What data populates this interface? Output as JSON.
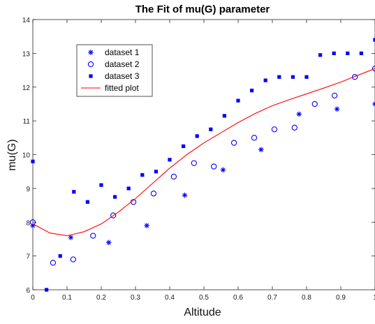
{
  "chart_data": {
    "type": "scatter",
    "title": "The Fit of mu(G) parameter",
    "xlabel": "Altitude",
    "ylabel": "mu(G)",
    "xlim": [
      0,
      1
    ],
    "ylim": [
      6,
      14
    ],
    "xticks": [
      0,
      0.1,
      0.2,
      0.3,
      0.4,
      0.5,
      0.6,
      0.7,
      0.8,
      0.9,
      1
    ],
    "xtick_labels": [
      "0",
      "0.1",
      "0.2",
      "0.3",
      "0.4",
      "0.5",
      "0.6",
      "0.7",
      "0.8",
      "0.9",
      "1"
    ],
    "yticks": [
      6,
      7,
      8,
      9,
      10,
      11,
      12,
      13,
      14
    ],
    "ytick_labels": [
      "6",
      "7",
      "8",
      "9",
      "10",
      "11",
      "12",
      "13",
      "14"
    ],
    "grid": false,
    "legend_position": "top-left",
    "series": [
      {
        "name": "dataset 1",
        "marker": "asterisk",
        "color": "#0000ff",
        "x": [
          0.0,
          0.111,
          0.222,
          0.333,
          0.444,
          0.556,
          0.667,
          0.778,
          0.889,
          1.0
        ],
        "y": [
          7.9,
          7.55,
          7.4,
          7.9,
          8.8,
          9.55,
          10.15,
          11.2,
          11.35,
          11.5
        ]
      },
      {
        "name": "dataset 2",
        "marker": "circle",
        "color": "#0000ff",
        "x": [
          0.0,
          0.059,
          0.118,
          0.176,
          0.235,
          0.294,
          0.353,
          0.412,
          0.471,
          0.529,
          0.588,
          0.647,
          0.706,
          0.765,
          0.824,
          0.882,
          0.941,
          1.0
        ],
        "y": [
          8.0,
          6.8,
          6.9,
          7.6,
          8.2,
          8.6,
          8.85,
          9.35,
          9.75,
          9.65,
          10.35,
          10.5,
          10.75,
          10.8,
          11.5,
          11.75,
          12.3,
          12.55
        ]
      },
      {
        "name": "dataset 3",
        "marker": "square",
        "color": "#0000ff",
        "x": [
          0.0,
          0.04,
          0.08,
          0.12,
          0.16,
          0.2,
          0.24,
          0.28,
          0.32,
          0.36,
          0.4,
          0.44,
          0.48,
          0.52,
          0.56,
          0.6,
          0.64,
          0.68,
          0.72,
          0.76,
          0.8,
          0.84,
          0.88,
          0.92,
          0.96,
          1.0
        ],
        "y": [
          9.8,
          6.0,
          7.0,
          8.9,
          8.6,
          9.1,
          8.75,
          9.0,
          9.4,
          9.5,
          9.85,
          10.25,
          10.55,
          10.75,
          11.15,
          11.6,
          11.9,
          12.2,
          12.3,
          12.3,
          12.3,
          12.95,
          13.0,
          13.0,
          13.0,
          13.4
        ]
      },
      {
        "name": "fitted plot",
        "marker": "line",
        "color": "#ff0000",
        "x": [
          0.0,
          0.05,
          0.1,
          0.15,
          0.2,
          0.25,
          0.3,
          0.35,
          0.4,
          0.45,
          0.5,
          0.55,
          0.6,
          0.65,
          0.7,
          0.75,
          0.8,
          0.85,
          0.9,
          0.95,
          1.0
        ],
        "y": [
          7.95,
          7.68,
          7.6,
          7.72,
          7.95,
          8.3,
          8.7,
          9.15,
          9.6,
          10.0,
          10.35,
          10.65,
          10.95,
          11.22,
          11.45,
          11.63,
          11.8,
          11.97,
          12.15,
          12.35,
          12.55
        ]
      }
    ]
  }
}
